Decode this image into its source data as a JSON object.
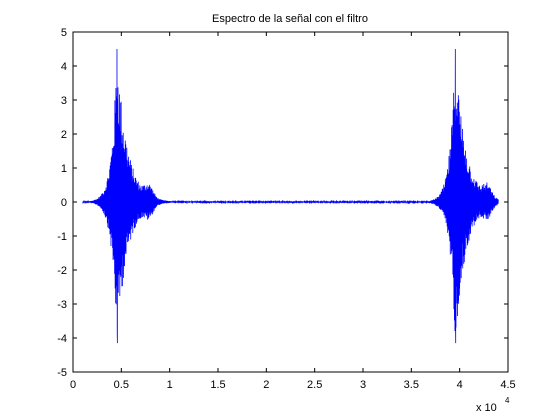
{
  "chart_data": {
    "type": "line",
    "title": "Espectro de la señal con el filtro",
    "xlabel": "",
    "ylabel": "",
    "x_exponent_label": "x 10",
    "x_exponent_power": "4",
    "xlim": [
      0,
      4.5
    ],
    "ylim": [
      -5,
      5
    ],
    "x_ticks": [
      0,
      0.5,
      1,
      1.5,
      2,
      2.5,
      3,
      3.5,
      4,
      4.5
    ],
    "x_tick_labels": [
      "0",
      "0.5",
      "1",
      "1.5",
      "2",
      "2.5",
      "3",
      "3.5",
      "4",
      "4.5"
    ],
    "y_ticks": [
      5,
      4,
      3,
      2,
      1,
      0,
      -1,
      -2,
      -3,
      -4,
      -5
    ],
    "y_tick_labels": [
      "5",
      "4",
      "3",
      "2",
      "1",
      "0",
      "-1",
      "-2",
      "-3",
      "-4",
      "-5"
    ],
    "grid": false,
    "line_color": "#0000ff",
    "series": [
      {
        "x_range": [
          0.1,
          4.4
        ],
        "peaks": [
          {
            "center": 0.455,
            "max": 4.5,
            "min": -4.15
          },
          {
            "center": 3.955,
            "max": 4.5,
            "min": -4.15
          }
        ],
        "baseline": 0
      }
    ]
  }
}
